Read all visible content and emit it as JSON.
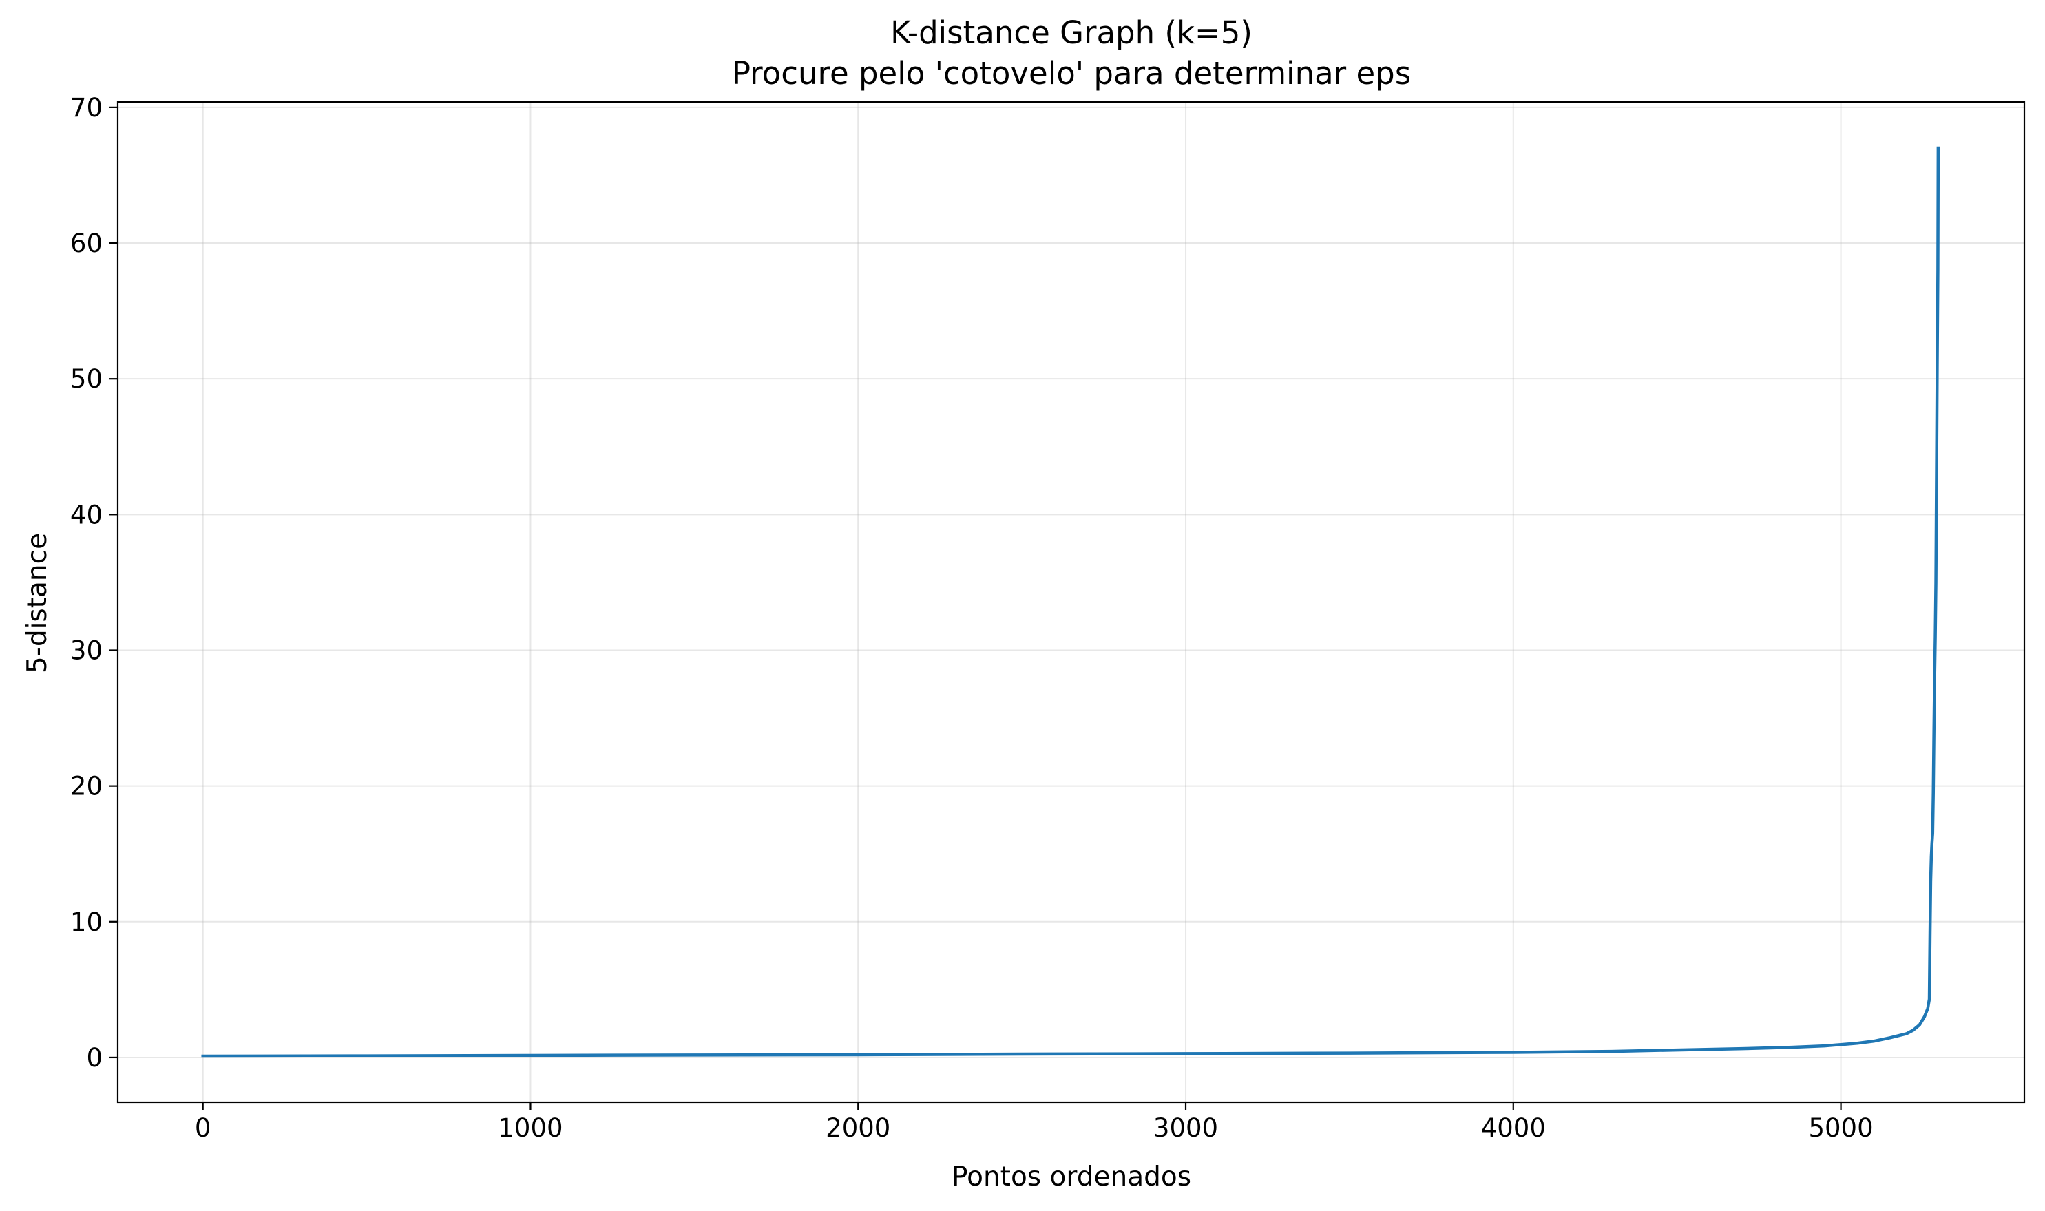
{
  "chart_data": {
    "type": "line",
    "title": "K-distance Graph (k=5)",
    "subtitle": "Procure pelo 'cotovelo' para determinar eps",
    "xlabel": "Pontos ordenados",
    "ylabel": "5-distance",
    "xlim": [
      -260,
      5560
    ],
    "ylim": [
      -3.3,
      70.4
    ],
    "xticks": [
      0,
      1000,
      2000,
      3000,
      4000,
      5000
    ],
    "yticks": [
      0,
      10,
      20,
      30,
      40,
      50,
      60,
      70
    ],
    "xtick_labels": [
      "0",
      "1000",
      "2000",
      "3000",
      "4000",
      "5000"
    ],
    "ytick_labels": [
      "0",
      "10",
      "20",
      "30",
      "40",
      "50",
      "60",
      "70"
    ],
    "grid": true,
    "legend": "none",
    "series": [
      {
        "color": "#1f77b4",
        "x": [
          0,
          500,
          1000,
          1500,
          2000,
          2500,
          3000,
          3500,
          4000,
          4300,
          4500,
          4700,
          4850,
          4950,
          5000,
          5050,
          5100,
          5150,
          5200,
          5220,
          5240,
          5255,
          5265,
          5270,
          5272,
          5274,
          5276,
          5278,
          5280,
          5282,
          5284,
          5286,
          5288,
          5290,
          5292,
          5294,
          5296,
          5297
        ],
        "y": [
          0.1,
          0.12,
          0.15,
          0.18,
          0.2,
          0.25,
          0.28,
          0.32,
          0.38,
          0.45,
          0.55,
          0.65,
          0.75,
          0.85,
          0.95,
          1.05,
          1.2,
          1.45,
          1.75,
          2.0,
          2.4,
          3.0,
          3.6,
          4.3,
          9.0,
          13.0,
          14.8,
          15.8,
          16.5,
          19.5,
          24.0,
          28.0,
          31.0,
          35.0,
          43.0,
          51.0,
          58.0,
          67.0
        ]
      }
    ]
  }
}
